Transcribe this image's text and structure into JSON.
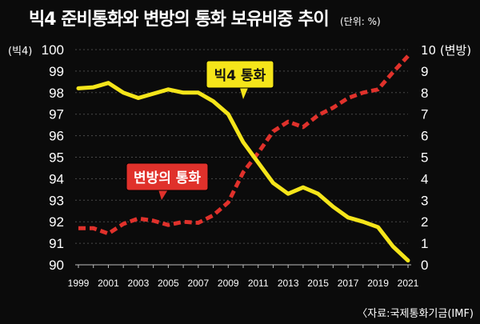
{
  "header": {
    "title": "빅4 준비통화와 변방의 통화 보유비중 추이",
    "unit": "(단위: %)"
  },
  "footer": {
    "source": "〈자료:국제통화기금(IMF)"
  },
  "colors": {
    "background": "#0b0b0b",
    "big4_line": "#f5e51a",
    "periphery_line": "#e0312b",
    "grid": "#4a4a4a",
    "text": "#ffffff"
  },
  "chart_data": {
    "type": "line",
    "title": "빅4 준비통화와 변방의 통화 보유비중 추이",
    "unit": "(단위: %)",
    "x": [
      1999,
      2000,
      2001,
      2002,
      2003,
      2004,
      2005,
      2006,
      2007,
      2008,
      2009,
      2010,
      2011,
      2012,
      2013,
      2014,
      2015,
      2016,
      2017,
      2018,
      2019,
      2020,
      2021
    ],
    "x_tick_labels": [
      "1999",
      "2001",
      "2003",
      "2005",
      "2007",
      "2009",
      "2011",
      "2013",
      "2015",
      "2017",
      "2019",
      "2021"
    ],
    "left_axis": {
      "label": "(빅4)",
      "ylim": [
        90,
        100
      ],
      "ticks": [
        "90",
        "91",
        "92",
        "93",
        "94",
        "95",
        "96",
        "97",
        "98",
        "99",
        "100"
      ]
    },
    "right_axis": {
      "label": "10 (변방)",
      "ylim": [
        0,
        10
      ],
      "ticks": [
        "0",
        "1",
        "2",
        "3",
        "4",
        "5",
        "6",
        "7",
        "8",
        "9"
      ]
    },
    "series": [
      {
        "name": "빅4 통화",
        "axis": "left",
        "style": "solid",
        "values": [
          98.2,
          98.25,
          98.45,
          98.0,
          97.75,
          97.95,
          98.15,
          98.0,
          98.0,
          97.6,
          97.0,
          95.7,
          94.75,
          93.8,
          93.3,
          93.6,
          93.3,
          92.7,
          92.2,
          92.0,
          91.75,
          90.85,
          90.2
        ]
      },
      {
        "name": "변방의 통화",
        "axis": "right",
        "style": "dashed",
        "values": [
          1.7,
          1.7,
          1.45,
          1.9,
          2.15,
          2.05,
          1.85,
          2.0,
          1.95,
          2.3,
          2.9,
          4.3,
          5.2,
          6.2,
          6.65,
          6.4,
          6.95,
          7.3,
          7.75,
          8.0,
          8.15,
          8.95,
          9.7
        ]
      }
    ]
  }
}
